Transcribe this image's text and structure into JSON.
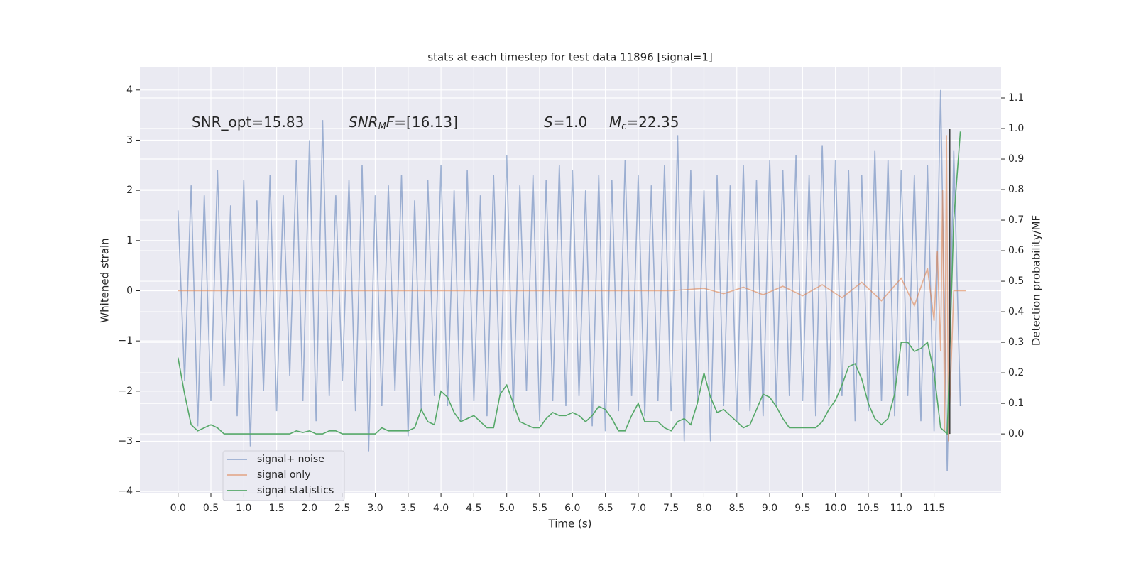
{
  "chart_data": {
    "type": "line",
    "title": "stats at each timestep for test data 11896 [signal=1]",
    "xlabel": "Time (s)",
    "ylabel": "Whitened strain",
    "y2label": "Detection probability/MF",
    "xlim": [
      -0.58,
      12.52
    ],
    "ylim": [
      -4.04,
      4.45
    ],
    "y2lim": [
      -0.195,
      1.2
    ],
    "grid": true,
    "legend": "lower left",
    "xticks": [
      {
        "value": 0,
        "label": "0.0"
      },
      0.5,
      {
        "value": 1,
        "label": "1.0"
      },
      1.5,
      {
        "value": 2,
        "label": "2.0"
      },
      2.5,
      {
        "value": 3,
        "label": "3.0"
      },
      3.5,
      {
        "value": 4,
        "label": "4.0"
      },
      4.5,
      {
        "value": 5,
        "label": "5.0"
      },
      5.5,
      {
        "value": 6,
        "label": "6.0"
      },
      6.5,
      {
        "value": 7,
        "label": "7.0"
      },
      7.5,
      {
        "value": 8,
        "label": "8.0"
      },
      8.5,
      {
        "value": 9,
        "label": "9.0"
      },
      9.5,
      {
        "value": 10,
        "label": "10.0"
      },
      10.5,
      {
        "value": 11,
        "label": "11.0"
      },
      11.5
    ],
    "yticks": [
      {
        "value": -4,
        "label": "−4"
      },
      {
        "value": -3,
        "label": "−3"
      },
      {
        "value": -2,
        "label": "−2"
      },
      {
        "value": -1,
        "label": "−1"
      },
      0,
      1,
      2,
      3,
      4
    ],
    "y2ticks": [
      {
        "value": 0,
        "label": "0.0"
      },
      0.1,
      0.2,
      0.3,
      0.4,
      0.5,
      0.6,
      0.7,
      0.8,
      0.9,
      {
        "value": 1,
        "label": "1.0"
      },
      1.1
    ],
    "annotations": [
      {
        "parts": [
          "SNR_opt=15.83"
        ]
      },
      {
        "parts": [
          "SNR",
          "M",
          "F",
          "=[16.13]"
        ]
      },
      {
        "parts": [
          "S",
          "=1.0"
        ]
      },
      {
        "parts": [
          "M",
          "c",
          "=22.35"
        ]
      }
    ],
    "vline": {
      "x": 11.74,
      "ymin": 0,
      "ymax": 1,
      "axis": "y2",
      "color": "#3a3a3a"
    },
    "series": [
      {
        "name": "signal+ noise",
        "color": "#4c72b0",
        "opacity": 0.5,
        "x": [
          0,
          0.1,
          0.2,
          0.3,
          0.4,
          0.5,
          0.6,
          0.7,
          0.8,
          0.9,
          1,
          1.1,
          1.2,
          1.3,
          1.4,
          1.5,
          1.6,
          1.7,
          1.8,
          1.9,
          2,
          2.1,
          2.2,
          2.3,
          2.4,
          2.5,
          2.6,
          2.7,
          2.8,
          2.9,
          3,
          3.1,
          3.2,
          3.3,
          3.4,
          3.5,
          3.6,
          3.7,
          3.8,
          3.9,
          4,
          4.1,
          4.2,
          4.3,
          4.4,
          4.5,
          4.6,
          4.7,
          4.8,
          4.9,
          5,
          5.1,
          5.2,
          5.3,
          5.4,
          5.5,
          5.6,
          5.7,
          5.8,
          5.9,
          6,
          6.1,
          6.2,
          6.3,
          6.4,
          6.5,
          6.6,
          6.7,
          6.8,
          6.9,
          7,
          7.1,
          7.2,
          7.3,
          7.4,
          7.5,
          7.6,
          7.7,
          7.8,
          7.9,
          8,
          8.1,
          8.2,
          8.3,
          8.4,
          8.5,
          8.6,
          8.7,
          8.8,
          8.9,
          9,
          9.1,
          9.2,
          9.3,
          9.4,
          9.5,
          9.6,
          9.7,
          9.8,
          9.9,
          10,
          10.1,
          10.2,
          10.3,
          10.4,
          10.5,
          10.6,
          10.7,
          10.8,
          10.9,
          11,
          11.1,
          11.2,
          11.3,
          11.4,
          11.5,
          11.6,
          11.7,
          11.8,
          11.9
        ],
        "values": [
          1.6,
          -1.8,
          2.1,
          -2.7,
          1.9,
          -2.2,
          2.4,
          -1.9,
          1.7,
          -2.5,
          2.2,
          -3.1,
          1.8,
          -2.0,
          2.3,
          -2.4,
          1.9,
          -1.7,
          2.6,
          -2.2,
          3.0,
          -2.6,
          3.4,
          -2.1,
          1.9,
          -1.8,
          2.2,
          -2.4,
          2.5,
          -3.2,
          1.9,
          -2.3,
          2.1,
          -2.0,
          2.3,
          -2.9,
          1.8,
          -2.4,
          2.2,
          -2.1,
          2.5,
          -2.3,
          2.0,
          -2.6,
          2.4,
          -2.2,
          1.9,
          -2.5,
          2.3,
          -2.1,
          2.7,
          -2.4,
          2.1,
          -2.0,
          2.3,
          -2.6,
          2.2,
          -2.2,
          2.5,
          -2.3,
          2.4,
          -2.1,
          2.0,
          -2.7,
          2.3,
          -2.8,
          2.2,
          -2.4,
          2.6,
          -2.1,
          2.3,
          -2.5,
          2.1,
          -2.2,
          2.5,
          -2.4,
          3.1,
          -3.0,
          2.4,
          -2.2,
          2.0,
          -3.0,
          2.3,
          -2.3,
          2.1,
          -2.6,
          2.5,
          -2.4,
          2.2,
          -2.5,
          2.6,
          -2.3,
          2.4,
          -2.1,
          2.7,
          -2.2,
          2.3,
          -2.5,
          2.9,
          -2.3,
          2.6,
          -2.1,
          2.4,
          -2.6,
          2.3,
          -2.4,
          2.8,
          -2.2,
          2.6,
          -2.5,
          2.4,
          -2.1,
          2.3,
          -2.6,
          2.5,
          -2.8,
          4.0,
          -3.6,
          2.8,
          -2.3
        ]
      },
      {
        "name": "signal only",
        "color": "#dd8452",
        "opacity": 0.6,
        "x": [
          0,
          7.5,
          8.0,
          8.3,
          8.6,
          8.9,
          9.2,
          9.5,
          9.8,
          10.1,
          10.4,
          10.7,
          11.0,
          11.2,
          11.4,
          11.5,
          11.55,
          11.6,
          11.63,
          11.66,
          11.69,
          11.72,
          11.8,
          11.98
        ],
        "values": [
          0,
          0,
          0.05,
          -0.06,
          0.07,
          -0.08,
          0.09,
          -0.1,
          0.12,
          -0.14,
          0.17,
          -0.2,
          0.25,
          -0.3,
          0.45,
          -0.6,
          0.8,
          -1.2,
          2.0,
          -2.8,
          3.1,
          -3.0,
          0,
          0
        ]
      },
      {
        "name": "signal statistics",
        "color": "#55a868",
        "opacity": 1,
        "axis": "y2",
        "x": [
          0,
          0.1,
          0.2,
          0.3,
          0.4,
          0.5,
          0.6,
          0.7,
          0.8,
          0.9,
          1,
          1.1,
          1.2,
          1.3,
          1.4,
          1.5,
          1.6,
          1.7,
          1.8,
          1.9,
          2,
          2.1,
          2.2,
          2.3,
          2.4,
          2.5,
          2.6,
          2.7,
          2.8,
          2.9,
          3,
          3.1,
          3.2,
          3.3,
          3.4,
          3.5,
          3.6,
          3.7,
          3.8,
          3.9,
          4,
          4.1,
          4.2,
          4.3,
          4.4,
          4.5,
          4.6,
          4.7,
          4.8,
          4.9,
          5,
          5.1,
          5.2,
          5.3,
          5.4,
          5.5,
          5.6,
          5.7,
          5.8,
          5.9,
          6,
          6.1,
          6.2,
          6.3,
          6.4,
          6.5,
          6.6,
          6.7,
          6.8,
          6.9,
          7,
          7.1,
          7.2,
          7.3,
          7.4,
          7.5,
          7.6,
          7.7,
          7.8,
          7.9,
          8,
          8.1,
          8.2,
          8.3,
          8.4,
          8.5,
          8.6,
          8.7,
          8.8,
          8.9,
          9,
          9.1,
          9.2,
          9.3,
          9.4,
          9.5,
          9.6,
          9.7,
          9.8,
          9.9,
          10,
          10.1,
          10.2,
          10.3,
          10.4,
          10.5,
          10.6,
          10.7,
          10.8,
          10.9,
          11,
          11.1,
          11.2,
          11.3,
          11.4,
          11.5,
          11.6,
          11.7,
          11.8,
          11.9
        ],
        "values": [
          0.25,
          0.13,
          0.03,
          0.01,
          0.02,
          0.03,
          0.02,
          0.0,
          0.0,
          0.0,
          0.0,
          0.0,
          0.0,
          0.0,
          0.0,
          0.0,
          0.0,
          0.0,
          0.01,
          0.005,
          0.01,
          0.0,
          0.0,
          0.01,
          0.01,
          0.0,
          0.0,
          0.0,
          0.0,
          0.0,
          0.0,
          0.02,
          0.01,
          0.01,
          0.01,
          0.01,
          0.02,
          0.08,
          0.04,
          0.03,
          0.14,
          0.12,
          0.07,
          0.04,
          0.05,
          0.06,
          0.04,
          0.02,
          0.02,
          0.13,
          0.16,
          0.1,
          0.04,
          0.03,
          0.02,
          0.02,
          0.05,
          0.07,
          0.06,
          0.06,
          0.07,
          0.06,
          0.04,
          0.06,
          0.09,
          0.08,
          0.05,
          0.01,
          0.01,
          0.06,
          0.1,
          0.04,
          0.04,
          0.04,
          0.02,
          0.01,
          0.04,
          0.05,
          0.03,
          0.1,
          0.2,
          0.12,
          0.07,
          0.08,
          0.06,
          0.04,
          0.02,
          0.03,
          0.08,
          0.13,
          0.12,
          0.09,
          0.05,
          0.02,
          0.02,
          0.02,
          0.02,
          0.02,
          0.04,
          0.08,
          0.11,
          0.16,
          0.22,
          0.23,
          0.18,
          0.1,
          0.05,
          0.03,
          0.05,
          0.13,
          0.3,
          0.3,
          0.27,
          0.28,
          0.3,
          0.2,
          0.02,
          0.0,
          0.7,
          0.99
        ]
      }
    ]
  }
}
